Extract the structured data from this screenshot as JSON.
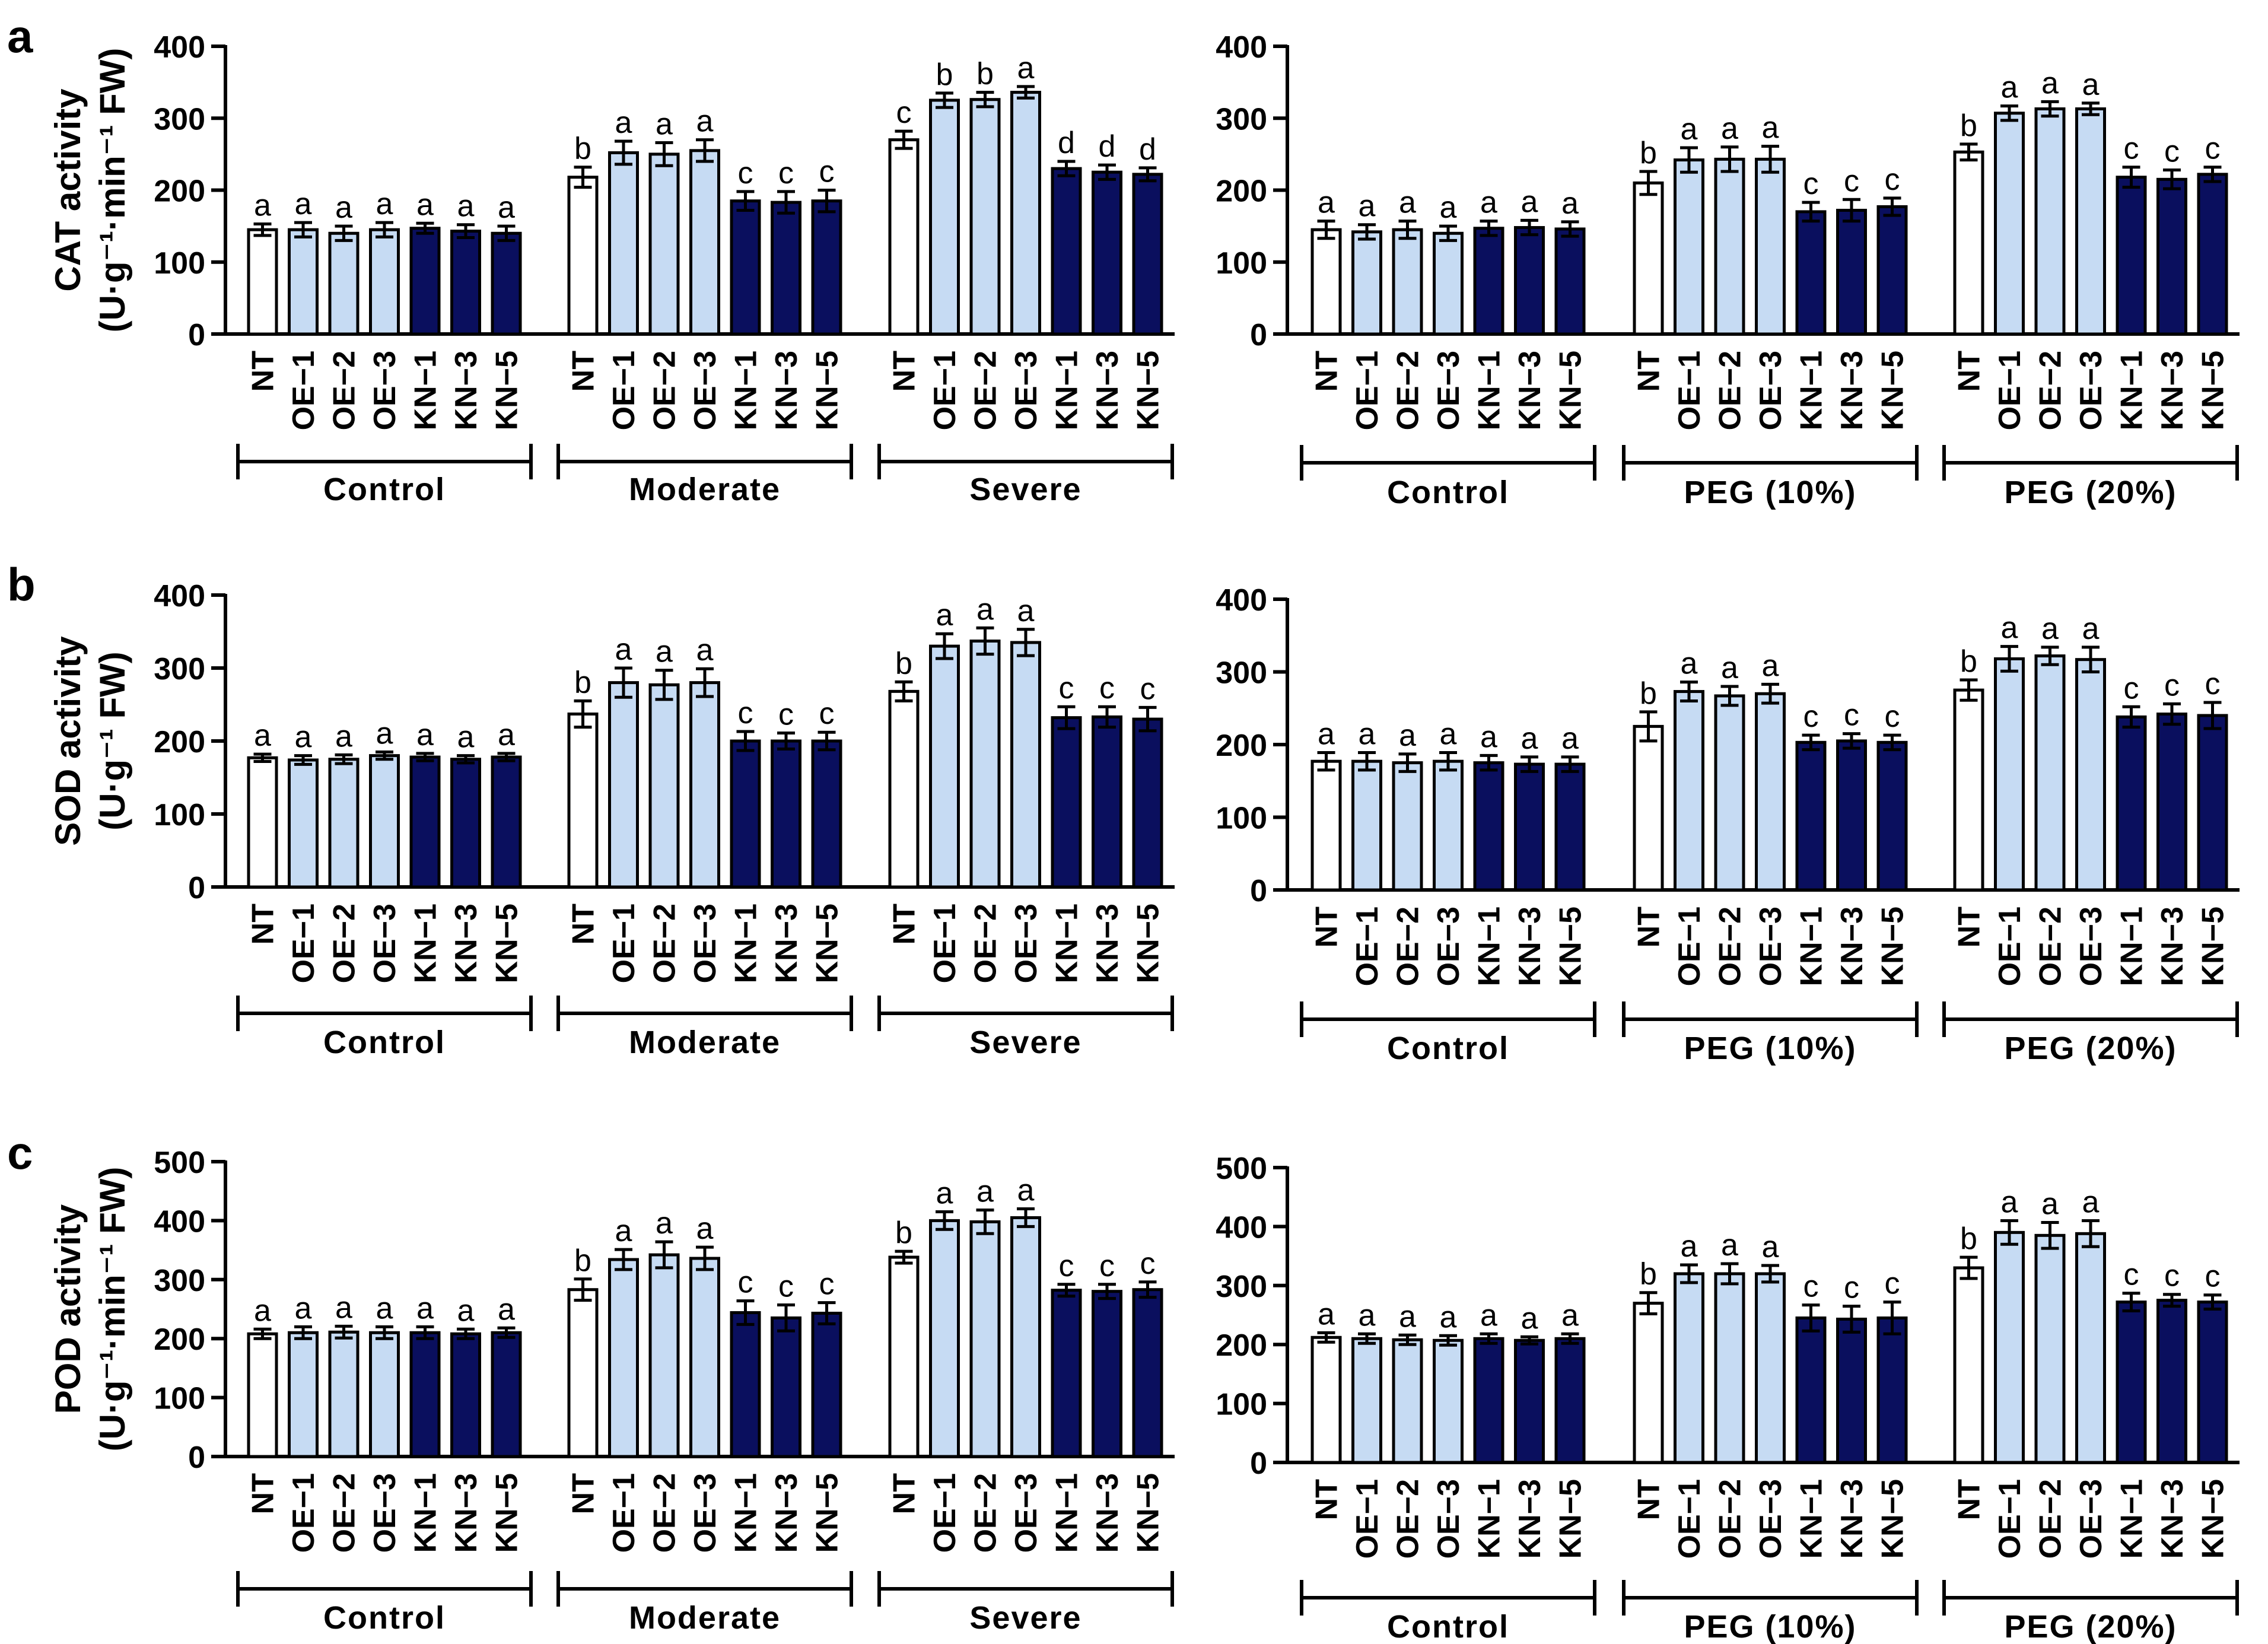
{
  "styles": {
    "nt_color": "#ffffff",
    "oe_color": "#c6dbf3",
    "kn_color": "#0a0f5e",
    "stroke_color": "#000000"
  },
  "chart_data": [
    {
      "panel": "a",
      "type": "bar",
      "ylabel_line1": "CAT activity",
      "ylabel_line2": "(U·g⁻¹·min⁻¹ FW)",
      "ylim": [
        0,
        400
      ],
      "yticks": [
        "0",
        "100",
        "200",
        "300",
        "400"
      ],
      "categories": [
        "NT",
        "OE−1",
        "OE−2",
        "OE−3",
        "KN−1",
        "KN−3",
        "KN−5"
      ],
      "charts": [
        {
          "groups": [
            {
              "label": "Control",
              "values": [
                145,
                145,
                140,
                145,
                147,
                143,
                140
              ],
              "errors": [
                8,
                10,
                10,
                10,
                7,
                9,
                10
              ],
              "letters": [
                "a",
                "a",
                "a",
                "a",
                "a",
                "a",
                "a"
              ]
            },
            {
              "label": "Moderate",
              "values": [
                218,
                252,
                250,
                255,
                185,
                183,
                185
              ],
              "errors": [
                14,
                16,
                16,
                15,
                13,
                15,
                15
              ],
              "letters": [
                "b",
                "a",
                "a",
                "a",
                "c",
                "c",
                "c"
              ]
            },
            {
              "label": "Severe",
              "values": [
                270,
                325,
                326,
                336,
                230,
                225,
                222
              ],
              "errors": [
                12,
                10,
                10,
                8,
                10,
                10,
                9
              ],
              "letters": [
                "c",
                "b",
                "b",
                "a",
                "d",
                "d",
                "d"
              ]
            }
          ]
        },
        {
          "groups": [
            {
              "label": "Control",
              "values": [
                145,
                142,
                145,
                140,
                147,
                148,
                146
              ],
              "errors": [
                12,
                10,
                12,
                10,
                10,
                10,
                10
              ],
              "letters": [
                "a",
                "a",
                "a",
                "a",
                "a",
                "a",
                "a"
              ]
            },
            {
              "label": "PEG (10%)",
              "values": [
                210,
                242,
                243,
                243,
                170,
                172,
                177
              ],
              "errors": [
                16,
                17,
                17,
                18,
                13,
                15,
                12
              ],
              "letters": [
                "b",
                "a",
                "a",
                "a",
                "c",
                "c",
                "c"
              ]
            },
            {
              "label": "PEG (20%)",
              "values": [
                253,
                307,
                313,
                313,
                218,
                215,
                222
              ],
              "errors": [
                11,
                10,
                10,
                8,
                14,
                13,
                10
              ],
              "letters": [
                "b",
                "a",
                "a",
                "a",
                "c",
                "c",
                "c"
              ]
            }
          ]
        }
      ]
    },
    {
      "panel": "b",
      "type": "bar",
      "ylabel_line1": "SOD activity",
      "ylabel_line2": "(U·g⁻¹ FW)",
      "ylim": [
        0,
        400
      ],
      "yticks": [
        "0",
        "100",
        "200",
        "300",
        "400"
      ],
      "categories": [
        "NT",
        "OE−1",
        "OE−2",
        "OE−3",
        "KN−1",
        "KN−3",
        "KN−5"
      ],
      "charts": [
        {
          "groups": [
            {
              "label": "Control",
              "values": [
                177,
                174,
                175,
                180,
                178,
                175,
                178
              ],
              "errors": [
                5,
                6,
                6,
                5,
                5,
                5,
                5
              ],
              "letters": [
                "a",
                "a",
                "a",
                "a",
                "a",
                "a",
                "a"
              ]
            },
            {
              "label": "Moderate",
              "values": [
                237,
                280,
                277,
                280,
                200,
                200,
                200
              ],
              "errors": [
                18,
                20,
                20,
                19,
                13,
                11,
                12
              ],
              "letters": [
                "b",
                "a",
                "a",
                "a",
                "c",
                "c",
                "c"
              ]
            },
            {
              "label": "Severe",
              "values": [
                268,
                330,
                337,
                335,
                232,
                233,
                230
              ],
              "errors": [
                13,
                17,
                18,
                18,
                15,
                14,
                16
              ],
              "letters": [
                "b",
                "a",
                "a",
                "a",
                "c",
                "c",
                "c"
              ]
            }
          ]
        },
        {
          "groups": [
            {
              "label": "Control",
              "values": [
                177,
                177,
                175,
                177,
                175,
                173,
                173
              ],
              "errors": [
                12,
                12,
                12,
                12,
                10,
                10,
                10
              ],
              "letters": [
                "a",
                "a",
                "a",
                "a",
                "a",
                "a",
                "a"
              ]
            },
            {
              "label": "PEG (10%)",
              "values": [
                225,
                273,
                267,
                270,
                203,
                205,
                203
              ],
              "errors": [
                20,
                13,
                13,
                13,
                10,
                10,
                10
              ],
              "letters": [
                "b",
                "a",
                "a",
                "a",
                "c",
                "c",
                "c"
              ]
            },
            {
              "label": "PEG (20%)",
              "values": [
                275,
                318,
                322,
                317,
                238,
                242,
                240
              ],
              "errors": [
                14,
                17,
                12,
                17,
                14,
                14,
                18
              ],
              "letters": [
                "b",
                "a",
                "a",
                "a",
                "c",
                "c",
                "c"
              ]
            }
          ]
        }
      ]
    },
    {
      "panel": "c",
      "type": "bar",
      "ylabel_line1": "POD activity",
      "ylabel_line2": "(U·g⁻¹·min⁻¹ FW)",
      "ylim": [
        0,
        500
      ],
      "yticks": [
        "0",
        "100",
        "200",
        "300",
        "400",
        "500"
      ],
      "categories": [
        "NT",
        "OE−1",
        "OE−2",
        "OE−3",
        "KN−1",
        "KN−3",
        "KN−5"
      ],
      "charts": [
        {
          "groups": [
            {
              "label": "Control",
              "values": [
                208,
                210,
                211,
                210,
                210,
                208,
                210
              ],
              "errors": [
                8,
                10,
                10,
                10,
                10,
                8,
                8
              ],
              "letters": [
                "a",
                "a",
                "a",
                "a",
                "a",
                "a",
                "a"
              ]
            },
            {
              "label": "Moderate",
              "values": [
                283,
                334,
                342,
                336,
                244,
                235,
                243
              ],
              "errors": [
                18,
                17,
                22,
                19,
                20,
                22,
                18
              ],
              "letters": [
                "b",
                "a",
                "a",
                "a",
                "c",
                "c",
                "c"
              ]
            },
            {
              "label": "Severe",
              "values": [
                338,
                400,
                398,
                405,
                282,
                280,
                283
              ],
              "errors": [
                10,
                15,
                20,
                15,
                10,
                12,
                13
              ],
              "letters": [
                "b",
                "a",
                "a",
                "a",
                "c",
                "c",
                "c"
              ]
            }
          ]
        },
        {
          "groups": [
            {
              "label": "Control",
              "values": [
                212,
                210,
                208,
                207,
                210,
                207,
                210
              ],
              "errors": [
                8,
                8,
                8,
                8,
                8,
                6,
                8
              ],
              "letters": [
                "a",
                "a",
                "a",
                "a",
                "a",
                "a",
                "a"
              ]
            },
            {
              "label": "PEG (10%)",
              "values": [
                270,
                320,
                320,
                320,
                245,
                243,
                245
              ],
              "errors": [
                18,
                15,
                17,
                14,
                22,
                22,
                27
              ],
              "letters": [
                "b",
                "a",
                "a",
                "a",
                "c",
                "c",
                "c"
              ]
            },
            {
              "label": "PEG (20%)",
              "values": [
                330,
                390,
                385,
                388,
                272,
                275,
                272
              ],
              "errors": [
                18,
                20,
                22,
                22,
                15,
                10,
                12
              ],
              "letters": [
                "b",
                "a",
                "a",
                "a",
                "c",
                "c",
                "c"
              ]
            }
          ]
        }
      ]
    }
  ]
}
